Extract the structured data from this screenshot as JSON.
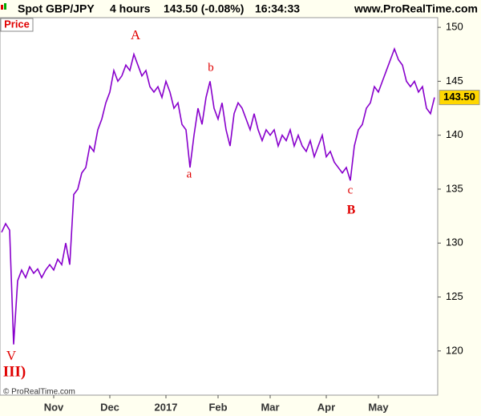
{
  "chart_data": {
    "type": "line",
    "title": "Spot GBP/JPY",
    "interval": "4 hours",
    "quote": "143.50 (-0.08%)",
    "time": "16:34:33",
    "source": "www.ProRealTime.com",
    "y_label": "Price",
    "copyright": "© ProRealTime.com",
    "annotations": [
      "A",
      "a",
      "b",
      "c",
      "B",
      "V",
      "III)"
    ],
    "price_marker": {
      "value": 143.5,
      "label": "143.50"
    },
    "color": "#8800cc",
    "categories": [
      "",
      null,
      null,
      null,
      null,
      null,
      null,
      null,
      null,
      null,
      null,
      null,
      null,
      "Nov",
      null,
      null,
      null,
      null,
      null,
      null,
      null,
      null,
      null,
      null,
      null,
      null,
      null,
      "Dec",
      null,
      null,
      null,
      null,
      null,
      null,
      null,
      null,
      null,
      null,
      null,
      null,
      null,
      "2017",
      null,
      null,
      null,
      null,
      null,
      null,
      null,
      null,
      null,
      null,
      null,
      null,
      "Feb",
      null,
      null,
      null,
      null,
      null,
      null,
      null,
      null,
      null,
      null,
      null,
      null,
      "Mar",
      null,
      null,
      null,
      null,
      null,
      null,
      null,
      null,
      null,
      null,
      null,
      null,
      null,
      "Apr",
      null,
      null,
      null,
      null,
      null,
      null,
      null,
      null,
      null,
      null,
      null,
      null,
      "May",
      null,
      null,
      null,
      null,
      null,
      null,
      null,
      null,
      null,
      null,
      null,
      null,
      null,
      null
    ],
    "values": [
      131.0,
      131.8,
      131.2,
      120.6,
      126.5,
      127.5,
      126.8,
      127.8,
      127.2,
      127.6,
      126.8,
      127.5,
      128.0,
      127.5,
      128.5,
      128.0,
      130.0,
      128.0,
      134.5,
      135.0,
      136.5,
      137.0,
      139.0,
      138.5,
      140.5,
      141.5,
      143.0,
      144.0,
      146.0,
      145.0,
      145.5,
      146.5,
      146.0,
      147.5,
      146.5,
      145.5,
      146.0,
      144.5,
      144.0,
      144.5,
      143.5,
      145.0,
      144.0,
      142.5,
      143.0,
      141.0,
      140.5,
      137.0,
      140.0,
      142.5,
      141.0,
      143.5,
      145.0,
      142.5,
      141.5,
      143.0,
      140.5,
      139.0,
      142.0,
      143.0,
      142.5,
      141.5,
      140.5,
      142.0,
      140.5,
      139.5,
      140.5,
      140.0,
      140.5,
      139.0,
      140.0,
      139.5,
      140.5,
      139.0,
      140.0,
      139.0,
      138.5,
      139.5,
      138.0,
      139.0,
      140.0,
      138.0,
      138.5,
      137.5,
      137.0,
      136.5,
      137.0,
      135.8,
      139.0,
      140.5,
      141.0,
      142.5,
      143.0,
      144.5,
      144.0,
      145.0,
      146.0,
      147.0,
      148.0,
      147.0,
      146.5,
      145.0,
      144.5,
      145.0,
      144.0,
      144.5,
      142.5,
      142.0,
      143.5
    ],
    "ylim": [
      115.9,
      150.9
    ],
    "yticks": [
      120,
      125,
      130,
      135,
      140,
      145,
      150
    ],
    "grid": false
  }
}
